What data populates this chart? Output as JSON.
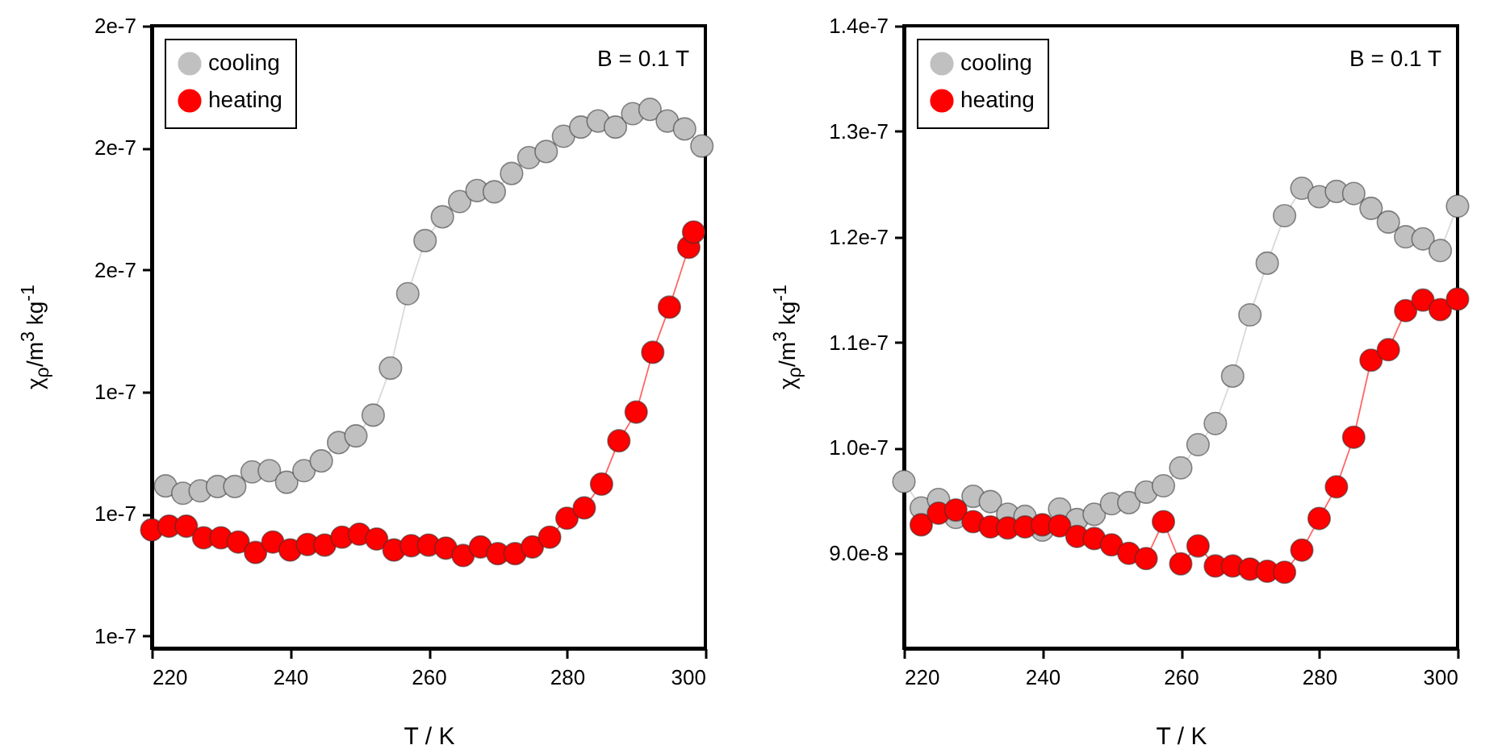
{
  "chart_data": [
    {
      "type": "line",
      "xlabel": "T / K",
      "ylabel": "χ$_{ρ}$/m$^{3}$ kg$^{-1}$",
      "annotations": [
        "B = 0.1 T"
      ],
      "xlim": [
        220,
        300
      ],
      "xticks": [
        220,
        240,
        260,
        280,
        300
      ],
      "ylim": [
        9.8e-08,
        2e-07
      ],
      "yticks": [
        {
          "value": 1e-07,
          "label": "1e-7"
        },
        {
          "value": 1.2e-07,
          "label": "1e-7"
        },
        {
          "value": 1.4e-07,
          "label": "1e-7"
        },
        {
          "value": 1.6e-07,
          "label": "2e-7"
        },
        {
          "value": 1.8e-07,
          "label": "2e-7"
        },
        {
          "value": 2e-07,
          "label": "2e-7"
        }
      ],
      "grid": false,
      "legend": "top left",
      "marker": "circle",
      "line_style": "solid",
      "series": [
        {
          "name": "cooling",
          "color": "#c0c0c0",
          "x": [
            222,
            224.5,
            227,
            229.5,
            232,
            234.5,
            237,
            239.5,
            242,
            244.5,
            247,
            249.5,
            252,
            254.5,
            257,
            259.5,
            262,
            264.5,
            267,
            269.5,
            272,
            274.5,
            277,
            279.5,
            282,
            284.5,
            287,
            289.5,
            292,
            294.5,
            297,
            299.5
          ],
          "values": [
            1.246e-07,
            1.234e-07,
            1.238e-07,
            1.245e-07,
            1.245e-07,
            1.269e-07,
            1.271e-07,
            1.252e-07,
            1.271e-07,
            1.287e-07,
            1.317e-07,
            1.328e-07,
            1.362e-07,
            1.439e-07,
            1.561e-07,
            1.648e-07,
            1.687e-07,
            1.712e-07,
            1.73e-07,
            1.728e-07,
            1.758e-07,
            1.784e-07,
            1.794e-07,
            1.819e-07,
            1.834e-07,
            1.844e-07,
            1.834e-07,
            1.856e-07,
            1.863e-07,
            1.844e-07,
            1.831e-07,
            1.803e-07
          ]
        },
        {
          "name": "heating",
          "color": "#ff0000",
          "x": [
            220,
            222.5,
            225,
            227.5,
            230,
            232.5,
            235,
            237.5,
            240,
            242.5,
            245,
            247.5,
            250,
            252.5,
            255,
            257.5,
            260,
            262.5,
            265,
            267.5,
            270,
            272.5,
            275,
            277.5,
            280,
            282.5,
            285,
            287.5,
            290,
            292.4,
            294.8,
            297.6,
            298.3
          ],
          "values": [
            1.174e-07,
            1.18e-07,
            1.18e-07,
            1.161e-07,
            1.161e-07,
            1.154e-07,
            1.137e-07,
            1.154e-07,
            1.141e-07,
            1.15e-07,
            1.149e-07,
            1.162e-07,
            1.167e-07,
            1.159e-07,
            1.141e-07,
            1.148e-07,
            1.149e-07,
            1.144e-07,
            1.132e-07,
            1.146e-07,
            1.135e-07,
            1.135e-07,
            1.146e-07,
            1.162e-07,
            1.193e-07,
            1.21e-07,
            1.249e-07,
            1.32e-07,
            1.367e-07,
            1.465e-07,
            1.539e-07,
            1.637e-07,
            1.662e-07
          ]
        }
      ]
    },
    {
      "type": "line",
      "xlabel": "T / K",
      "ylabel": "χ$_{ρ}$/m$^{3}$ kg$^{-1}$",
      "annotations": [
        "B = 0.1 T"
      ],
      "xlim": [
        220,
        300
      ],
      "xticks": [
        220,
        240,
        260,
        280,
        300
      ],
      "ylim": [
        8.1e-08,
        1.4e-07
      ],
      "yticks": [
        {
          "value": 9e-08,
          "label": "9.0e-8"
        },
        {
          "value": 1e-07,
          "label": "1.0e-7"
        },
        {
          "value": 1.1e-07,
          "label": "1.1e-7"
        },
        {
          "value": 1.2e-07,
          "label": "1.2e-7"
        },
        {
          "value": 1.3e-07,
          "label": "1.3e-7"
        },
        {
          "value": 1.4e-07,
          "label": "1.4e-7"
        }
      ],
      "grid": false,
      "legend": "top left",
      "marker": "circle",
      "line_style": "solid",
      "series": [
        {
          "name": "cooling",
          "color": "#c0c0c0",
          "x": [
            220,
            222.5,
            225,
            227.5,
            230,
            232.5,
            235,
            237.5,
            240,
            242.5,
            245,
            247.5,
            250,
            252.5,
            255,
            257.5,
            260,
            262.5,
            265,
            267.5,
            270,
            272.5,
            275,
            277.5,
            280,
            282.5,
            285,
            287.5,
            290,
            292.5,
            295,
            297.5,
            300
          ],
          "values": [
            9.68e-08,
            9.43e-08,
            9.51e-08,
            9.34e-08,
            9.54e-08,
            9.49e-08,
            9.37e-08,
            9.35e-08,
            9.22e-08,
            9.42e-08,
            9.32e-08,
            9.37e-08,
            9.47e-08,
            9.48e-08,
            9.58e-08,
            9.64e-08,
            9.81e-08,
            1.003e-07,
            1.023e-07,
            1.068e-07,
            1.126e-07,
            1.175e-07,
            1.22e-07,
            1.246e-07,
            1.238e-07,
            1.243e-07,
            1.241e-07,
            1.227e-07,
            1.214e-07,
            1.2e-07,
            1.198e-07,
            1.187e-07,
            1.229e-07
          ]
        },
        {
          "name": "heating",
          "color": "#ff0000",
          "x": [
            222.5,
            225,
            227.5,
            230,
            232.5,
            235,
            237.5,
            240,
            242.5,
            245,
            247.5,
            250,
            252.5,
            255,
            257.5,
            260,
            262.5,
            265,
            267.5,
            270,
            272.5,
            275,
            277.5,
            280,
            282.5,
            285,
            287.5,
            290,
            292.5,
            295,
            297.5,
            300
          ],
          "values": [
            9.27e-08,
            9.38e-08,
            9.41e-08,
            9.3e-08,
            9.25e-08,
            9.24e-08,
            9.25e-08,
            9.27e-08,
            9.26e-08,
            9.16e-08,
            9.14e-08,
            9.08e-08,
            9e-08,
            8.95e-08,
            9.3e-08,
            8.9e-08,
            9.07e-08,
            8.88e-08,
            8.88e-08,
            8.85e-08,
            8.83e-08,
            8.82e-08,
            9.03e-08,
            9.33e-08,
            9.63e-08,
            1.01e-07,
            1.083e-07,
            1.093e-07,
            1.13e-07,
            1.14e-07,
            1.131e-07,
            1.141e-07
          ]
        }
      ]
    }
  ]
}
